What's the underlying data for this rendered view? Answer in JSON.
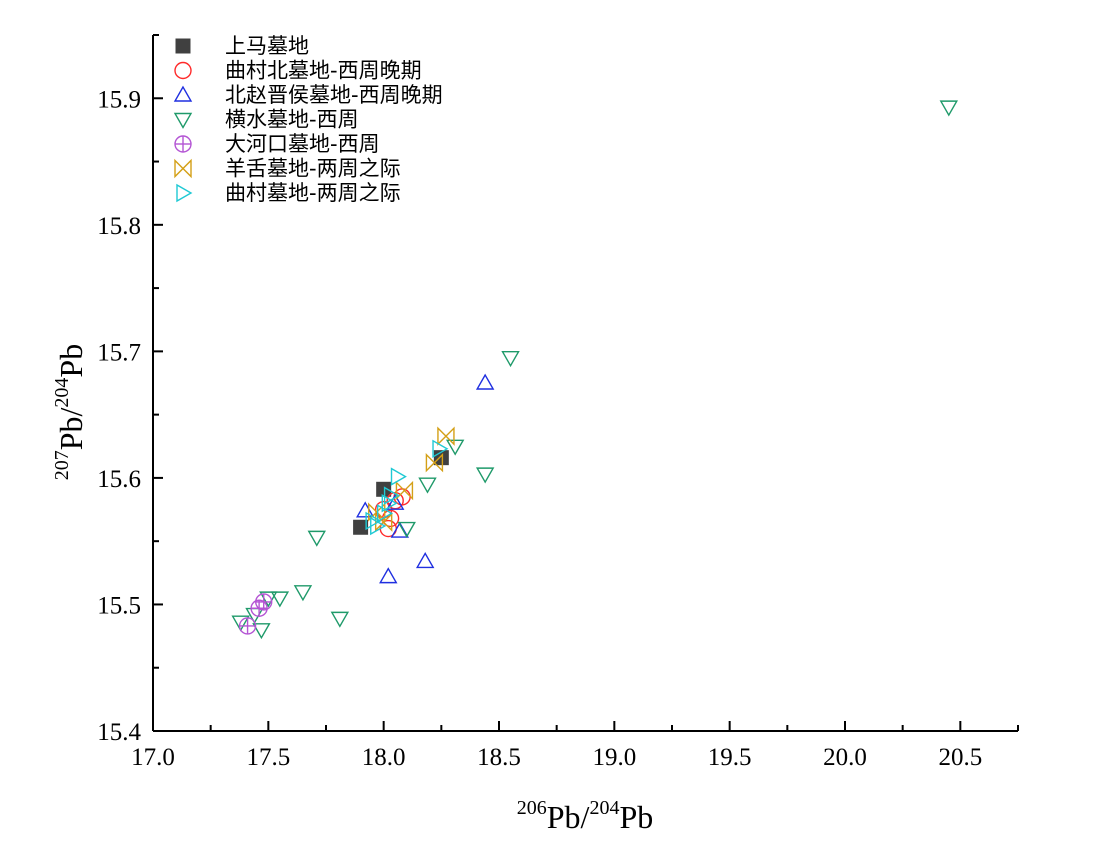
{
  "chart_data": {
    "type": "scatter",
    "title": "",
    "xlabel": {
      "base": "Pb/",
      "sup1": "206",
      "sup2": "204",
      "tail": "Pb"
    },
    "ylabel": {
      "sup1": "207",
      "sup2": "204"
    },
    "xlim": [
      17.0,
      20.75
    ],
    "ylim": [
      15.4,
      15.95
    ],
    "xticks": [
      "17.0",
      "17.5",
      "18.0",
      "18.5",
      "19.0",
      "19.5",
      "20.0",
      "20.5"
    ],
    "yticks": [
      "15.4",
      "15.5",
      "15.6",
      "15.7",
      "15.8",
      "15.9"
    ],
    "grid": false,
    "legend_position": "top-left",
    "series": [
      {
        "name": "上马墓地",
        "marker": "square",
        "color": "#404040",
        "points": [
          [
            17.9,
            15.561
          ],
          [
            18.0,
            15.591
          ],
          [
            18.25,
            15.616
          ]
        ]
      },
      {
        "name": "曲村北墓地-西周晚期",
        "marker": "circle",
        "color": "#ff2a2a",
        "points": [
          [
            18.0,
            15.575
          ],
          [
            18.02,
            15.56
          ],
          [
            18.05,
            15.582
          ],
          [
            18.08,
            15.585
          ],
          [
            18.03,
            15.568
          ]
        ]
      },
      {
        "name": "北赵晋侯墓地-西周晚期",
        "marker": "triangle-up",
        "color": "#1f2fe0",
        "points": [
          [
            17.92,
            15.574
          ],
          [
            18.02,
            15.522
          ],
          [
            18.07,
            15.558
          ],
          [
            18.18,
            15.534
          ],
          [
            18.44,
            15.675
          ],
          [
            18.05,
            15.58
          ]
        ]
      },
      {
        "name": "横水墓地-西周",
        "marker": "triangle-down",
        "color": "#1f9a6a",
        "points": [
          [
            17.38,
            15.486
          ],
          [
            17.47,
            15.48
          ],
          [
            17.5,
            15.505
          ],
          [
            17.55,
            15.505
          ],
          [
            17.65,
            15.51
          ],
          [
            17.71,
            15.553
          ],
          [
            17.81,
            15.489
          ],
          [
            18.1,
            15.56
          ],
          [
            18.19,
            15.595
          ],
          [
            18.31,
            15.625
          ],
          [
            18.44,
            15.603
          ],
          [
            18.55,
            15.695
          ],
          [
            20.45,
            15.893
          ],
          [
            17.44,
            15.492
          ]
        ]
      },
      {
        "name": "大河口墓地-西周",
        "marker": "circle-cross",
        "color": "#b455d4",
        "points": [
          [
            17.41,
            15.483
          ],
          [
            17.46,
            15.497
          ],
          [
            17.48,
            15.502
          ]
        ]
      },
      {
        "name": "羊舌墓地-两周之际",
        "marker": "hourglass",
        "color": "#d4a017",
        "points": [
          [
            17.97,
            15.573
          ],
          [
            18.09,
            15.59
          ],
          [
            18.22,
            15.612
          ],
          [
            18.27,
            15.633
          ],
          [
            18.0,
            15.565
          ]
        ]
      },
      {
        "name": "曲村墓地-两周之际",
        "marker": "triangle-right",
        "color": "#1fc9d4",
        "points": [
          [
            17.97,
            15.562
          ],
          [
            18.0,
            15.572
          ],
          [
            18.03,
            15.586
          ],
          [
            18.06,
            15.601
          ],
          [
            18.24,
            15.623
          ],
          [
            18.02,
            15.58
          ],
          [
            17.95,
            15.566
          ]
        ]
      }
    ]
  }
}
